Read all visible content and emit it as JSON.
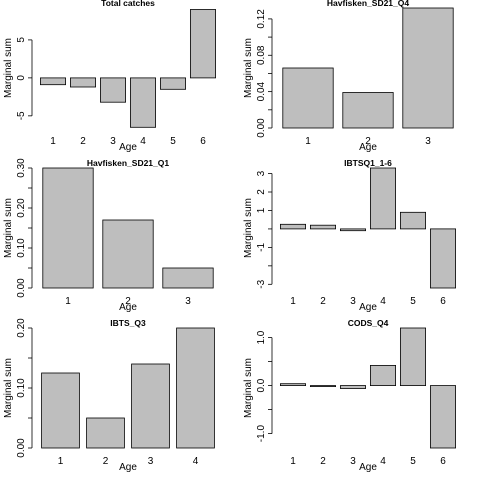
{
  "chart_data": [
    {
      "type": "bar",
      "title": "Total catches",
      "xlabel": "Age",
      "ylabel": "Marginal sum",
      "categories": [
        "1",
        "2",
        "3",
        "4",
        "5",
        "6"
      ],
      "values": [
        -0.9,
        -1.2,
        -3.2,
        -6.5,
        -1.5,
        9.0
      ],
      "ylim": [
        -6.6,
        9.2
      ],
      "yticks": [
        -5,
        0,
        5
      ],
      "ytick_labels": [
        "-5",
        "0",
        "5"
      ]
    },
    {
      "type": "bar",
      "title": "Havfisken_SD21_Q4",
      "xlabel": "Age",
      "ylabel": "Marginal sum",
      "categories": [
        "1",
        "2",
        "3"
      ],
      "values": [
        0.066,
        0.039,
        0.132
      ],
      "ylim": [
        0,
        0.132
      ],
      "yticks": [
        0.0,
        0.02,
        0.04,
        0.06,
        0.08,
        0.1,
        0.12
      ],
      "ytick_labels": [
        "0.00",
        "",
        "0.04",
        "",
        "0.08",
        "",
        "0.12"
      ]
    },
    {
      "type": "bar",
      "title": "Havfisken_SD21_Q1",
      "xlabel": "Age",
      "ylabel": "Marginal sum",
      "categories": [
        "1",
        "2",
        "3"
      ],
      "values": [
        0.3,
        0.17,
        0.05
      ],
      "ylim": [
        0,
        0.3
      ],
      "yticks": [
        0.0,
        0.05,
        0.1,
        0.15,
        0.2,
        0.25,
        0.3
      ],
      "ytick_labels": [
        "0.00",
        "",
        "0.10",
        "",
        "0.20",
        "",
        "0.30"
      ]
    },
    {
      "type": "bar",
      "title": "IBTSQ1_1-6",
      "xlabel": "Age",
      "ylabel": "Marginal sum",
      "categories": [
        "1",
        "2",
        "3",
        "4",
        "5",
        "6"
      ],
      "values": [
        0.25,
        0.2,
        -0.1,
        3.3,
        0.9,
        -3.2
      ],
      "ylim": [
        -3.2,
        3.3
      ],
      "yticks": [
        -3,
        -2,
        -1,
        0,
        1,
        2,
        3
      ],
      "ytick_labels": [
        "-3",
        "",
        "-1",
        "",
        "1",
        "2",
        "3"
      ]
    },
    {
      "type": "bar",
      "title": "IBTS_Q3",
      "xlabel": "Age",
      "ylabel": "Marginal sum",
      "categories": [
        "1",
        "2",
        "3",
        "4"
      ],
      "values": [
        0.125,
        0.05,
        0.14,
        0.2
      ],
      "ylim": [
        0,
        0.2
      ],
      "yticks": [
        0.0,
        0.05,
        0.1,
        0.15,
        0.2
      ],
      "ytick_labels": [
        "0.00",
        "",
        "0.10",
        "",
        "0.20"
      ]
    },
    {
      "type": "bar",
      "title": "CODS_Q4",
      "xlabel": "Age",
      "ylabel": "Marginal sum",
      "categories": [
        "1",
        "2",
        "3",
        "4",
        "5",
        "6"
      ],
      "values": [
        0.04,
        -0.02,
        -0.06,
        0.42,
        1.2,
        -1.3
      ],
      "ylim": [
        -1.3,
        1.2
      ],
      "yticks": [
        -1.0,
        -0.5,
        0.0,
        0.5,
        1.0
      ],
      "ytick_labels": [
        "-1.0",
        "",
        "0.0",
        "",
        "1.0"
      ]
    }
  ],
  "colors": {
    "bar_fill": "#bebebe",
    "bar_stroke": "#000000"
  }
}
